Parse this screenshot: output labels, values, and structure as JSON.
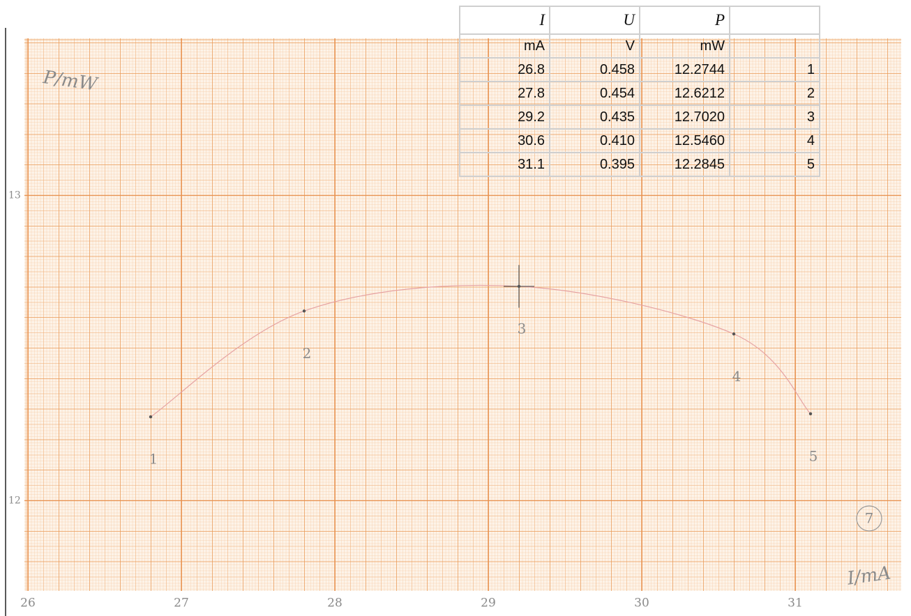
{
  "chart_data": {
    "type": "scatter",
    "x_label": "I/mA",
    "y_label": "P/mW",
    "x": [
      26.8,
      27.8,
      29.2,
      30.6,
      31.1
    ],
    "values": [
      12.2744,
      12.6212,
      12.702,
      12.546,
      12.2845
    ],
    "point_labels": [
      "1",
      "2",
      "3",
      "4",
      "5"
    ],
    "x_error": [
      null,
      null,
      0.1,
      null,
      null
    ],
    "y_error": [
      null,
      null,
      0.07,
      null,
      null
    ],
    "color": "#555555",
    "line_color": "#e6a3a3",
    "xlim": [
      26,
      31.7
    ],
    "ylim": [
      11.7,
      13.5
    ],
    "xticks": [
      26,
      27,
      28,
      29,
      30,
      31
    ],
    "yticks": [
      12,
      13
    ],
    "annotation": "7"
  },
  "table": {
    "header": [
      "I",
      "U",
      "P"
    ],
    "units": [
      "mA",
      "V",
      "mW"
    ],
    "rows": [
      [
        "26.8",
        "0.458",
        "12.2744",
        "1"
      ],
      [
        "27.8",
        "0.454",
        "12.6212",
        "2"
      ],
      [
        "29.2",
        "0.435",
        "12.7020",
        "3"
      ],
      [
        "30.6",
        "0.410",
        "12.5460",
        "4"
      ],
      [
        "31.1",
        "0.395",
        "12.2845",
        "5"
      ]
    ]
  }
}
